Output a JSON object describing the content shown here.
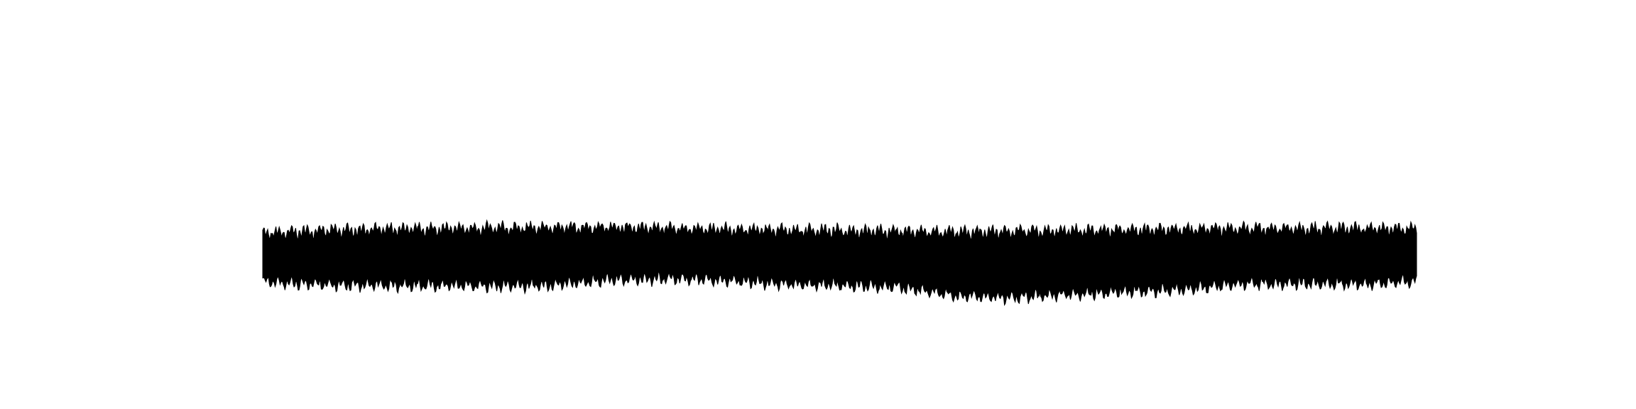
{
  "chart_data": {
    "type": "area",
    "title": "",
    "xlabel": "",
    "ylabel": "",
    "axes_visible": false,
    "grid": false,
    "legend": "none",
    "fill_color": "#000000",
    "background_color": "#ffffff",
    "xlim": [
      0,
      1
    ],
    "ylim": [
      -1,
      1
    ],
    "x": [
      0,
      0.05,
      0.1,
      0.15,
      0.2,
      0.25,
      0.3,
      0.35,
      0.4,
      0.45,
      0.5,
      0.55,
      0.6,
      0.65,
      0.7,
      0.75,
      0.8,
      0.85,
      0.9,
      0.95,
      1
    ],
    "series": [
      {
        "upper": [
          0.39,
          0.44,
          0.46,
          0.47,
          0.48,
          0.49,
          0.5,
          0.48,
          0.46,
          0.45,
          0.44,
          0.43,
          0.41,
          0.43,
          0.44,
          0.45,
          0.47,
          0.47,
          0.48,
          0.47,
          0.47
        ],
        "lower": [
          -0.41,
          -0.46,
          -0.47,
          -0.47,
          -0.48,
          -0.47,
          -0.38,
          -0.36,
          -0.39,
          -0.45,
          -0.47,
          -0.5,
          -0.65,
          -0.68,
          -0.62,
          -0.58,
          -0.54,
          -0.45,
          -0.44,
          -0.45,
          -0.4
        ]
      }
    ]
  }
}
